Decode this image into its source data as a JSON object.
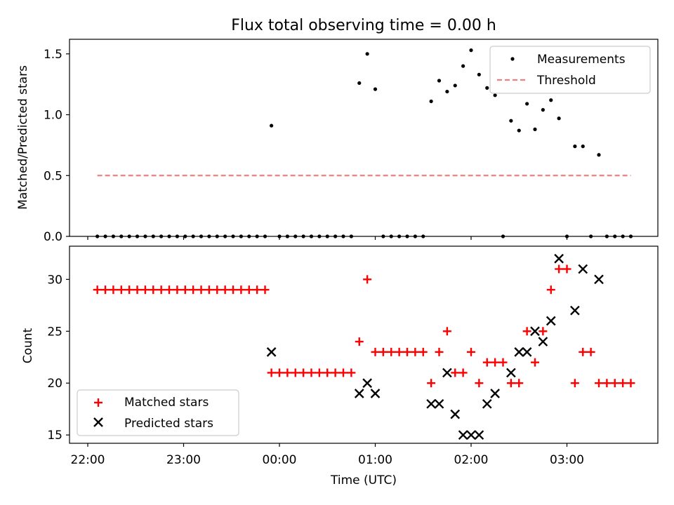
{
  "title": "Flux total observing time = 0.00 h",
  "chart_data": [
    {
      "type": "scatter",
      "title": "Flux total observing time = 0.00 h",
      "xlabel": "",
      "ylabel": "Matched/Predicted stars",
      "ylim": [
        0,
        1.62
      ],
      "yticks": [
        "0.0",
        "0.5",
        "1.0",
        "1.5"
      ],
      "xticks": [
        "22:00",
        "23:00",
        "00:00",
        "01:00",
        "02:00",
        "03:00"
      ],
      "legend_position": "top-right",
      "series": [
        {
          "name": "Measurements",
          "marker": "dot",
          "color": "#000000",
          "points": [
            [
              "22:06",
              0
            ],
            [
              "22:11",
              0
            ],
            [
              "22:16",
              0
            ],
            [
              "22:21",
              0
            ],
            [
              "22:26",
              0
            ],
            [
              "22:31",
              0
            ],
            [
              "22:36",
              0
            ],
            [
              "22:41",
              0
            ],
            [
              "22:46",
              0
            ],
            [
              "22:51",
              0
            ],
            [
              "22:56",
              0
            ],
            [
              "23:01",
              0
            ],
            [
              "23:06",
              0
            ],
            [
              "23:11",
              0
            ],
            [
              "23:16",
              0
            ],
            [
              "23:21",
              0
            ],
            [
              "23:26",
              0
            ],
            [
              "23:31",
              0
            ],
            [
              "23:36",
              0
            ],
            [
              "23:41",
              0
            ],
            [
              "23:46",
              0
            ],
            [
              "23:51",
              0
            ],
            [
              "23:55",
              0.91
            ],
            [
              "00:00",
              0
            ],
            [
              "00:05",
              0
            ],
            [
              "00:10",
              0
            ],
            [
              "00:15",
              0
            ],
            [
              "00:20",
              0
            ],
            [
              "00:25",
              0
            ],
            [
              "00:30",
              0
            ],
            [
              "00:35",
              0
            ],
            [
              "00:40",
              0
            ],
            [
              "00:45",
              0
            ],
            [
              "00:50",
              1.26
            ],
            [
              "00:55",
              1.5
            ],
            [
              "01:00",
              1.21
            ],
            [
              "01:05",
              0
            ],
            [
              "01:10",
              0
            ],
            [
              "01:15",
              0
            ],
            [
              "01:20",
              0
            ],
            [
              "01:25",
              0
            ],
            [
              "01:30",
              0
            ],
            [
              "01:35",
              1.11
            ],
            [
              "01:40",
              1.28
            ],
            [
              "01:45",
              1.19
            ],
            [
              "01:50",
              1.24
            ],
            [
              "01:55",
              1.4
            ],
            [
              "02:00",
              1.53
            ],
            [
              "02:05",
              1.33
            ],
            [
              "02:10",
              1.22
            ],
            [
              "02:15",
              1.16
            ],
            [
              "02:20",
              0
            ],
            [
              "02:25",
              0.95
            ],
            [
              "02:30",
              0.87
            ],
            [
              "02:35",
              1.09
            ],
            [
              "02:40",
              0.88
            ],
            [
              "02:45",
              1.04
            ],
            [
              "02:50",
              1.12
            ],
            [
              "02:55",
              0.97
            ],
            [
              "03:00",
              0
            ],
            [
              "03:05",
              0.74
            ],
            [
              "03:10",
              0.74
            ],
            [
              "03:15",
              0
            ],
            [
              "03:20",
              0.67
            ],
            [
              "03:25",
              0
            ],
            [
              "03:30",
              0
            ],
            [
              "03:35",
              0
            ],
            [
              "03:40",
              0
            ]
          ]
        },
        {
          "name": "Threshold",
          "type": "line",
          "style": "dashed",
          "color": "#f08080",
          "points": [
            [
              "22:06",
              0.5
            ],
            [
              "03:40",
              0.5
            ]
          ]
        }
      ]
    },
    {
      "type": "scatter",
      "title": "",
      "xlabel": "Time (UTC)",
      "ylabel": "Count",
      "ylim": [
        14.2,
        33.2
      ],
      "yticks": [
        "15",
        "20",
        "25",
        "30"
      ],
      "xticks": [
        "22:00",
        "23:00",
        "00:00",
        "01:00",
        "02:00",
        "03:00"
      ],
      "legend_position": "bottom-left",
      "series": [
        {
          "name": "Matched stars",
          "marker": "plus",
          "color": "#ff0000",
          "points": [
            [
              "22:06",
              29
            ],
            [
              "22:11",
              29
            ],
            [
              "22:16",
              29
            ],
            [
              "22:21",
              29
            ],
            [
              "22:26",
              29
            ],
            [
              "22:31",
              29
            ],
            [
              "22:36",
              29
            ],
            [
              "22:41",
              29
            ],
            [
              "22:46",
              29
            ],
            [
              "22:51",
              29
            ],
            [
              "22:56",
              29
            ],
            [
              "23:01",
              29
            ],
            [
              "23:06",
              29
            ],
            [
              "23:11",
              29
            ],
            [
              "23:16",
              29
            ],
            [
              "23:21",
              29
            ],
            [
              "23:26",
              29
            ],
            [
              "23:31",
              29
            ],
            [
              "23:36",
              29
            ],
            [
              "23:41",
              29
            ],
            [
              "23:46",
              29
            ],
            [
              "23:51",
              29
            ],
            [
              "23:55",
              21
            ],
            [
              "00:00",
              21
            ],
            [
              "00:05",
              21
            ],
            [
              "00:10",
              21
            ],
            [
              "00:15",
              21
            ],
            [
              "00:20",
              21
            ],
            [
              "00:25",
              21
            ],
            [
              "00:30",
              21
            ],
            [
              "00:35",
              21
            ],
            [
              "00:40",
              21
            ],
            [
              "00:45",
              21
            ],
            [
              "00:50",
              24
            ],
            [
              "00:55",
              30
            ],
            [
              "01:00",
              23
            ],
            [
              "01:05",
              23
            ],
            [
              "01:10",
              23
            ],
            [
              "01:15",
              23
            ],
            [
              "01:20",
              23
            ],
            [
              "01:25",
              23
            ],
            [
              "01:30",
              23
            ],
            [
              "01:35",
              20
            ],
            [
              "01:40",
              23
            ],
            [
              "01:45",
              25
            ],
            [
              "01:50",
              21
            ],
            [
              "01:55",
              21
            ],
            [
              "02:00",
              23
            ],
            [
              "02:05",
              20
            ],
            [
              "02:10",
              22
            ],
            [
              "02:15",
              22
            ],
            [
              "02:20",
              22
            ],
            [
              "02:25",
              20
            ],
            [
              "02:30",
              20
            ],
            [
              "02:35",
              25
            ],
            [
              "02:40",
              22
            ],
            [
              "02:45",
              25
            ],
            [
              "02:50",
              29
            ],
            [
              "02:55",
              31
            ],
            [
              "03:00",
              31
            ],
            [
              "03:05",
              20
            ],
            [
              "03:10",
              23
            ],
            [
              "03:15",
              23
            ],
            [
              "03:20",
              20
            ],
            [
              "03:25",
              20
            ],
            [
              "03:30",
              20
            ],
            [
              "03:35",
              20
            ],
            [
              "03:40",
              20
            ]
          ]
        },
        {
          "name": "Predicted stars",
          "marker": "x",
          "color": "#000000",
          "points": [
            [
              "23:55",
              23
            ],
            [
              "00:50",
              19
            ],
            [
              "00:55",
              20
            ],
            [
              "01:00",
              19
            ],
            [
              "01:35",
              18
            ],
            [
              "01:40",
              18
            ],
            [
              "01:45",
              21
            ],
            [
              "01:50",
              17
            ],
            [
              "01:55",
              15
            ],
            [
              "02:00",
              15
            ],
            [
              "02:05",
              15
            ],
            [
              "02:10",
              18
            ],
            [
              "02:15",
              19
            ],
            [
              "02:25",
              21
            ],
            [
              "02:30",
              23
            ],
            [
              "02:35",
              23
            ],
            [
              "02:40",
              25
            ],
            [
              "02:45",
              24
            ],
            [
              "02:50",
              26
            ],
            [
              "02:55",
              32
            ],
            [
              "03:05",
              27
            ],
            [
              "03:10",
              31
            ],
            [
              "03:20",
              30
            ]
          ]
        }
      ]
    }
  ]
}
